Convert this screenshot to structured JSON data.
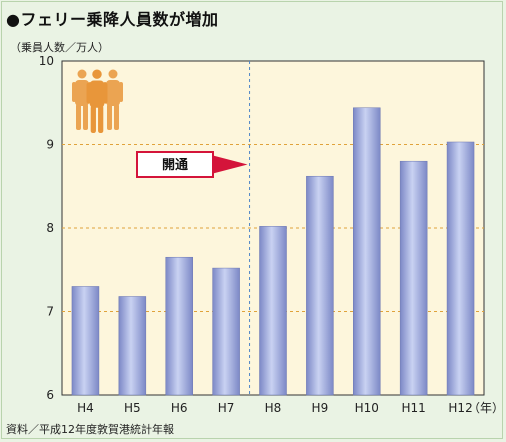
{
  "title": "●フェリー乗降人員数が増加",
  "unit_label": "（乗員人数／万人）",
  "source": "資料／平成12年度敦賀港統計年報",
  "callout": {
    "label": "開通"
  },
  "x_unit": "（年）",
  "icon": "people-group-icon",
  "colors": {
    "plot_background": "#fdf6dc",
    "bar_gradient_light": "#c9d2f2",
    "bar_gradient_dark": "#7c88c6",
    "grid_line": "#e0a23a",
    "divider_line": "#4f86c6",
    "callout_arrow": "#d4143a",
    "people_icon": "#e8963a"
  },
  "chart_data": {
    "type": "bar",
    "title": "",
    "xlabel": "",
    "ylabel": "（乗員人数／万人）",
    "categories": [
      "H4",
      "H5",
      "H6",
      "H7",
      "H8",
      "H9",
      "H10",
      "H11",
      "H12"
    ],
    "values": [
      7.3,
      7.18,
      7.65,
      7.52,
      8.02,
      8.62,
      9.44,
      8.8,
      9.03
    ],
    "ylim": [
      6,
      10
    ],
    "yticks": [
      6,
      7,
      8,
      9,
      10
    ],
    "grid": true,
    "annotation": {
      "text": "開通",
      "between": [
        "H7",
        "H8"
      ]
    }
  }
}
